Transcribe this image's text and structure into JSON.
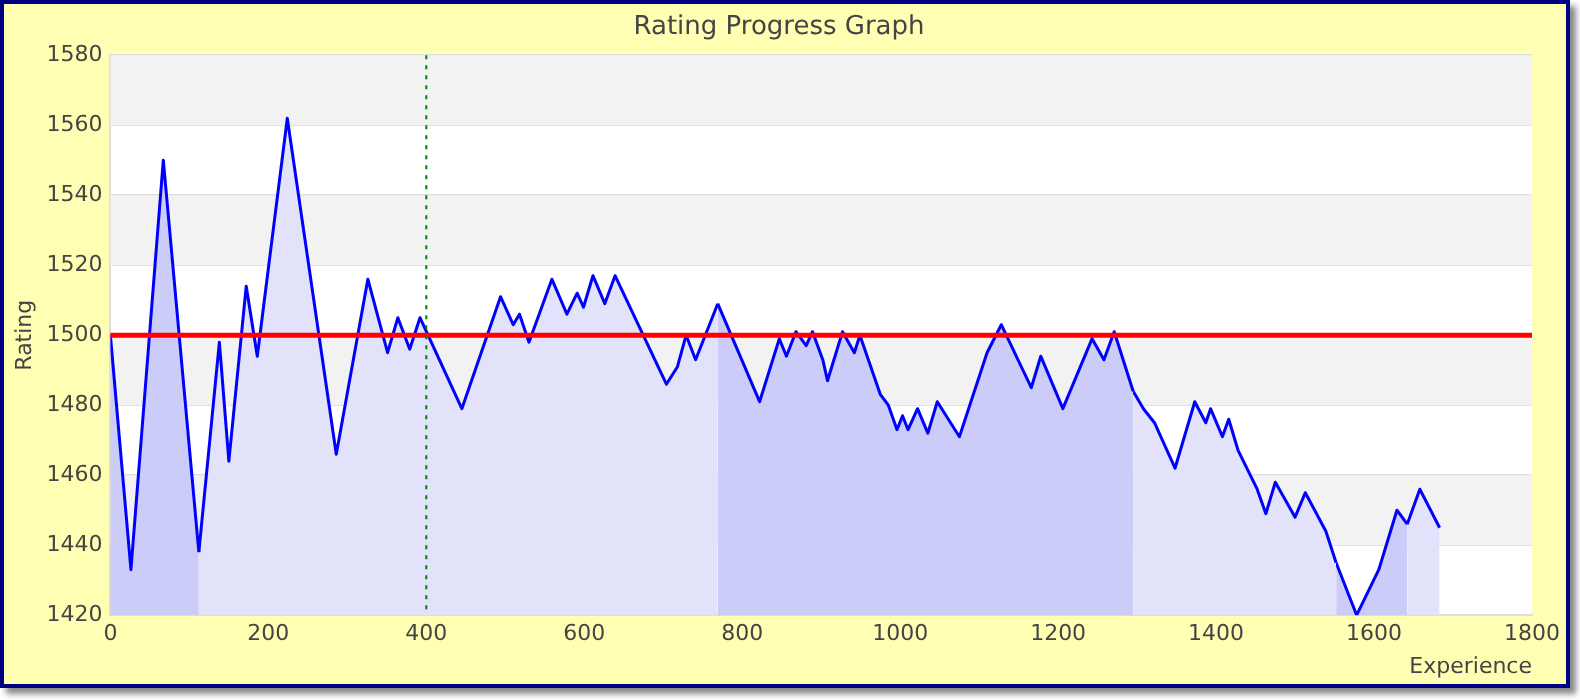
{
  "chart_data": {
    "type": "area",
    "title": "Rating Progress Graph",
    "xlabel": "Experience",
    "ylabel": "Rating",
    "series": [
      {
        "color": "#ccccf8",
        "x": [
          0,
          26,
          67,
          112
        ],
        "values": [
          1500,
          1433,
          1550,
          1438
        ]
      },
      {
        "color": "#e2e2fa",
        "x": [
          112,
          138,
          150,
          172,
          186,
          224,
          286,
          326,
          351,
          364,
          379,
          392,
          445,
          494,
          510,
          518,
          530,
          559,
          578,
          591,
          599,
          611,
          626,
          639,
          704,
          718,
          729,
          741,
          769
        ],
        "values": [
          1438,
          1498,
          1464,
          1514,
          1494,
          1562,
          1466,
          1516,
          1495,
          1505,
          1496,
          1505,
          1479,
          1511,
          1503,
          1506,
          1498,
          1516,
          1506,
          1512,
          1508,
          1517,
          1509,
          1517,
          1486,
          1491,
          1500,
          1493,
          1509
        ]
      },
      {
        "color": "#ccccf8",
        "x": [
          769,
          822,
          847,
          856,
          868,
          881,
          889,
          902,
          908,
          927,
          942,
          949,
          975,
          985,
          996,
          1003,
          1010,
          1022,
          1035,
          1047,
          1075,
          1110,
          1128,
          1166,
          1178,
          1206,
          1243,
          1258,
          1271,
          1295
        ],
        "values": [
          1509,
          1481,
          1499,
          1494,
          1501,
          1497,
          1501,
          1493,
          1487,
          1501,
          1495,
          1500,
          1483,
          1480,
          1473,
          1477,
          1473,
          1479,
          1472,
          1481,
          1471,
          1495,
          1503,
          1485,
          1494,
          1479,
          1499,
          1493,
          1501,
          1484
        ]
      },
      {
        "color": "#e2e2fa",
        "x": [
          1295,
          1308,
          1322,
          1348,
          1373,
          1387,
          1393,
          1408,
          1416,
          1428,
          1452,
          1463,
          1475,
          1500,
          1513,
          1539,
          1552
        ],
        "values": [
          1484,
          1479,
          1475,
          1462,
          1481,
          1475,
          1479,
          1471,
          1476,
          1467,
          1456,
          1449,
          1458,
          1448,
          1455,
          1444,
          1435
        ]
      },
      {
        "color": "#ccccf8",
        "x": [
          1552,
          1578,
          1606,
          1629,
          1642
        ],
        "values": [
          1435,
          1420,
          1433,
          1450,
          1446
        ]
      },
      {
        "color": "#e2e2fa",
        "x": [
          1642,
          1658,
          1683
        ],
        "values": [
          1446,
          1456,
          1445
        ]
      }
    ],
    "xlim": [
      0,
      1800
    ],
    "xticks": [
      0,
      200,
      400,
      600,
      800,
      1000,
      1200,
      1400,
      1600,
      1800
    ],
    "ylim": [
      1420,
      1580
    ],
    "yticks": [
      1420,
      1440,
      1460,
      1480,
      1500,
      1520,
      1540,
      1560,
      1580
    ],
    "grid": "y",
    "legend": false,
    "ref_lines": [
      {
        "axis": "y",
        "value": 1500,
        "color": "#ff0000",
        "line_style": "solid"
      },
      {
        "axis": "x",
        "value": 400,
        "color": "#008000",
        "line_style": "dotted"
      }
    ]
  }
}
